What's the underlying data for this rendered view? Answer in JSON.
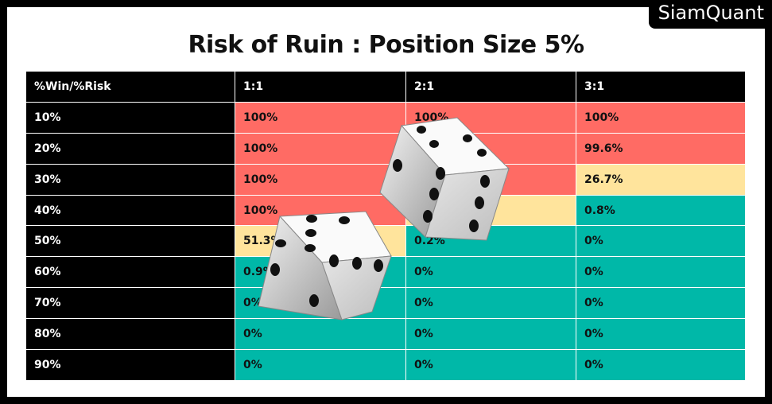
{
  "header": {
    "title": "Risk of Ruin : Position Size 5%",
    "brand": "SiamQuant"
  },
  "table": {
    "columns": [
      "%Win/%Risk",
      "1:1",
      "2:1",
      "3:1"
    ],
    "rows": [
      {
        "label": "10%",
        "cells": [
          {
            "text": "100%",
            "color": "#ff6b64"
          },
          {
            "text": "100%",
            "color": "#ff6b64"
          },
          {
            "text": "100%",
            "color": "#ff6b64"
          }
        ]
      },
      {
        "label": "20%",
        "cells": [
          {
            "text": "100%",
            "color": "#ff6b64"
          },
          {
            "text": null,
            "color": "#ff6b64"
          },
          {
            "text": "99.6%",
            "color": "#ff6b64"
          }
        ]
      },
      {
        "label": "30%",
        "cells": [
          {
            "text": "100%",
            "color": "#ff6b64"
          },
          {
            "text": null,
            "color": "#ff6b64"
          },
          {
            "text": "26.7%",
            "color": "#ffe49c"
          }
        ]
      },
      {
        "label": "40%",
        "cells": [
          {
            "text": "100%",
            "color": "#ff6b64"
          },
          {
            "text": null,
            "color": "#ffe49c"
          },
          {
            "text": "0.8%",
            "color": "#00b8a8"
          }
        ]
      },
      {
        "label": "50%",
        "cells": [
          {
            "text": "51.3%",
            "color": "#ffe49c"
          },
          {
            "text": "0.2%",
            "color": "#00b8a8"
          },
          {
            "text": "0%",
            "color": "#00b8a8"
          }
        ]
      },
      {
        "label": "60%",
        "cells": [
          {
            "text": "0.9%",
            "color": "#00b8a8"
          },
          {
            "text": "0%",
            "color": "#00b8a8"
          },
          {
            "text": "0%",
            "color": "#00b8a8"
          }
        ]
      },
      {
        "label": "70%",
        "cells": [
          {
            "text": "0%",
            "color": "#00b8a8"
          },
          {
            "text": "0%",
            "color": "#00b8a8"
          },
          {
            "text": "0%",
            "color": "#00b8a8"
          }
        ]
      },
      {
        "label": "80%",
        "cells": [
          {
            "text": "0%",
            "color": "#00b8a8"
          },
          {
            "text": "0%",
            "color": "#00b8a8"
          },
          {
            "text": "0%",
            "color": "#00b8a8"
          }
        ]
      },
      {
        "label": "90%",
        "cells": [
          {
            "text": "0%",
            "color": "#00b8a8"
          },
          {
            "text": "0%",
            "color": "#00b8a8"
          },
          {
            "text": "0%",
            "color": "#00b8a8"
          }
        ]
      }
    ]
  }
}
